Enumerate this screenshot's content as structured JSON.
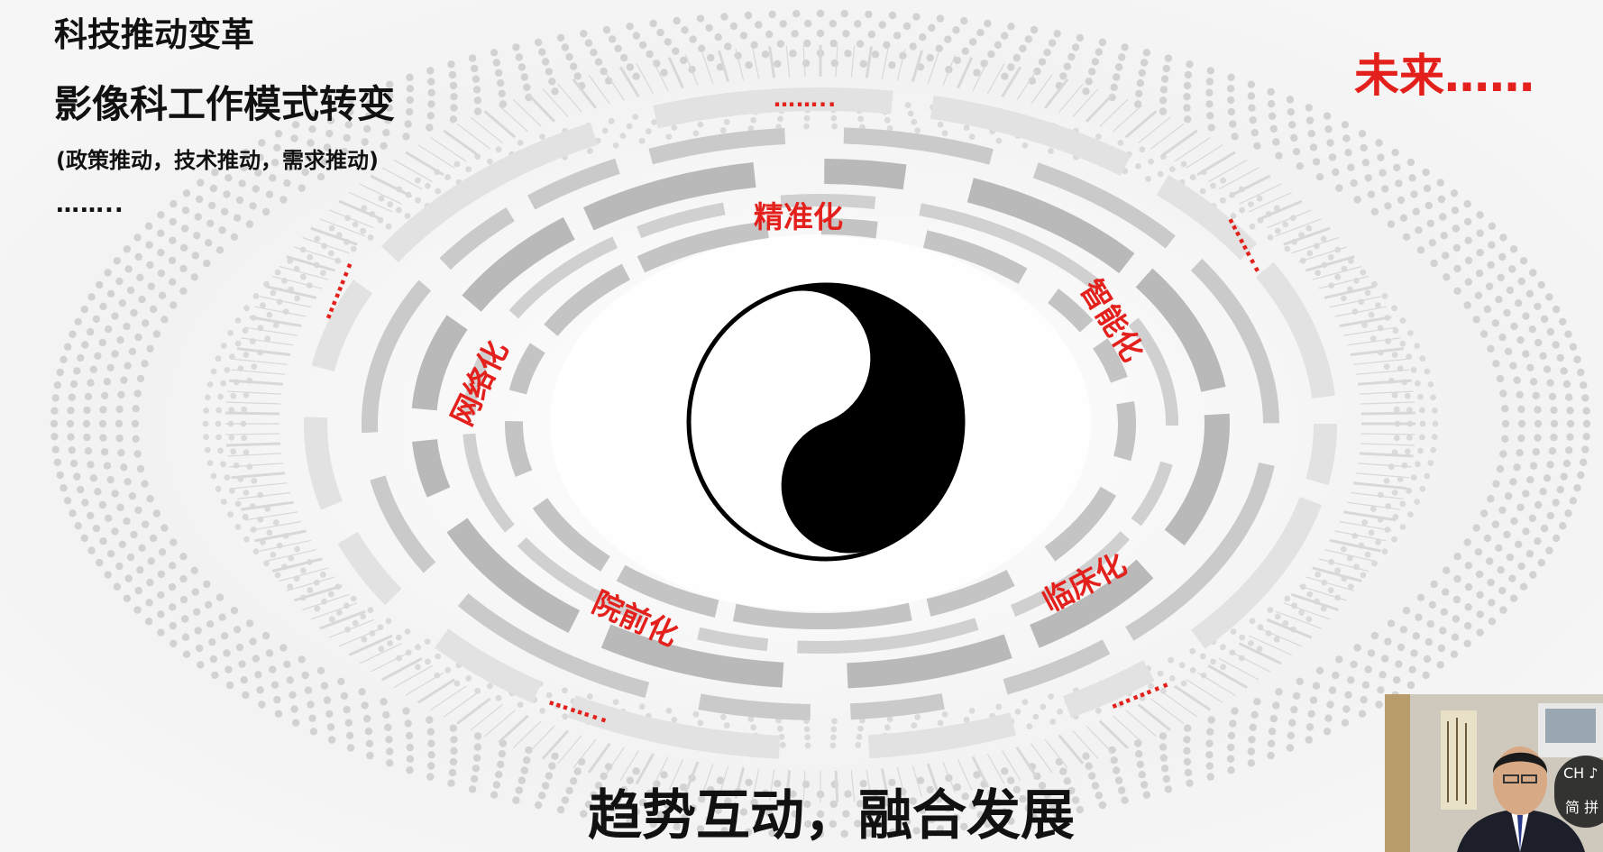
{
  "slide": {
    "title_line1": "科技推动变革",
    "title_line2": "影像科工作模式转变",
    "subtitle": "(政策推动，技术推动，需求推动)",
    "ellipsis": "……..",
    "future": "未来……",
    "footer": "趋势互动，融合发展"
  },
  "labels": {
    "precision": "精准化",
    "intelligent": "智能化",
    "network": "网络化",
    "clinical": "临床化",
    "prehospital": "院前化"
  },
  "dots": "……..",
  "colors": {
    "accent": "#e3201b",
    "text": "#111111"
  },
  "video_overlay": {
    "ime_line1": "CH ♪",
    "ime_line2": "简 拼"
  }
}
